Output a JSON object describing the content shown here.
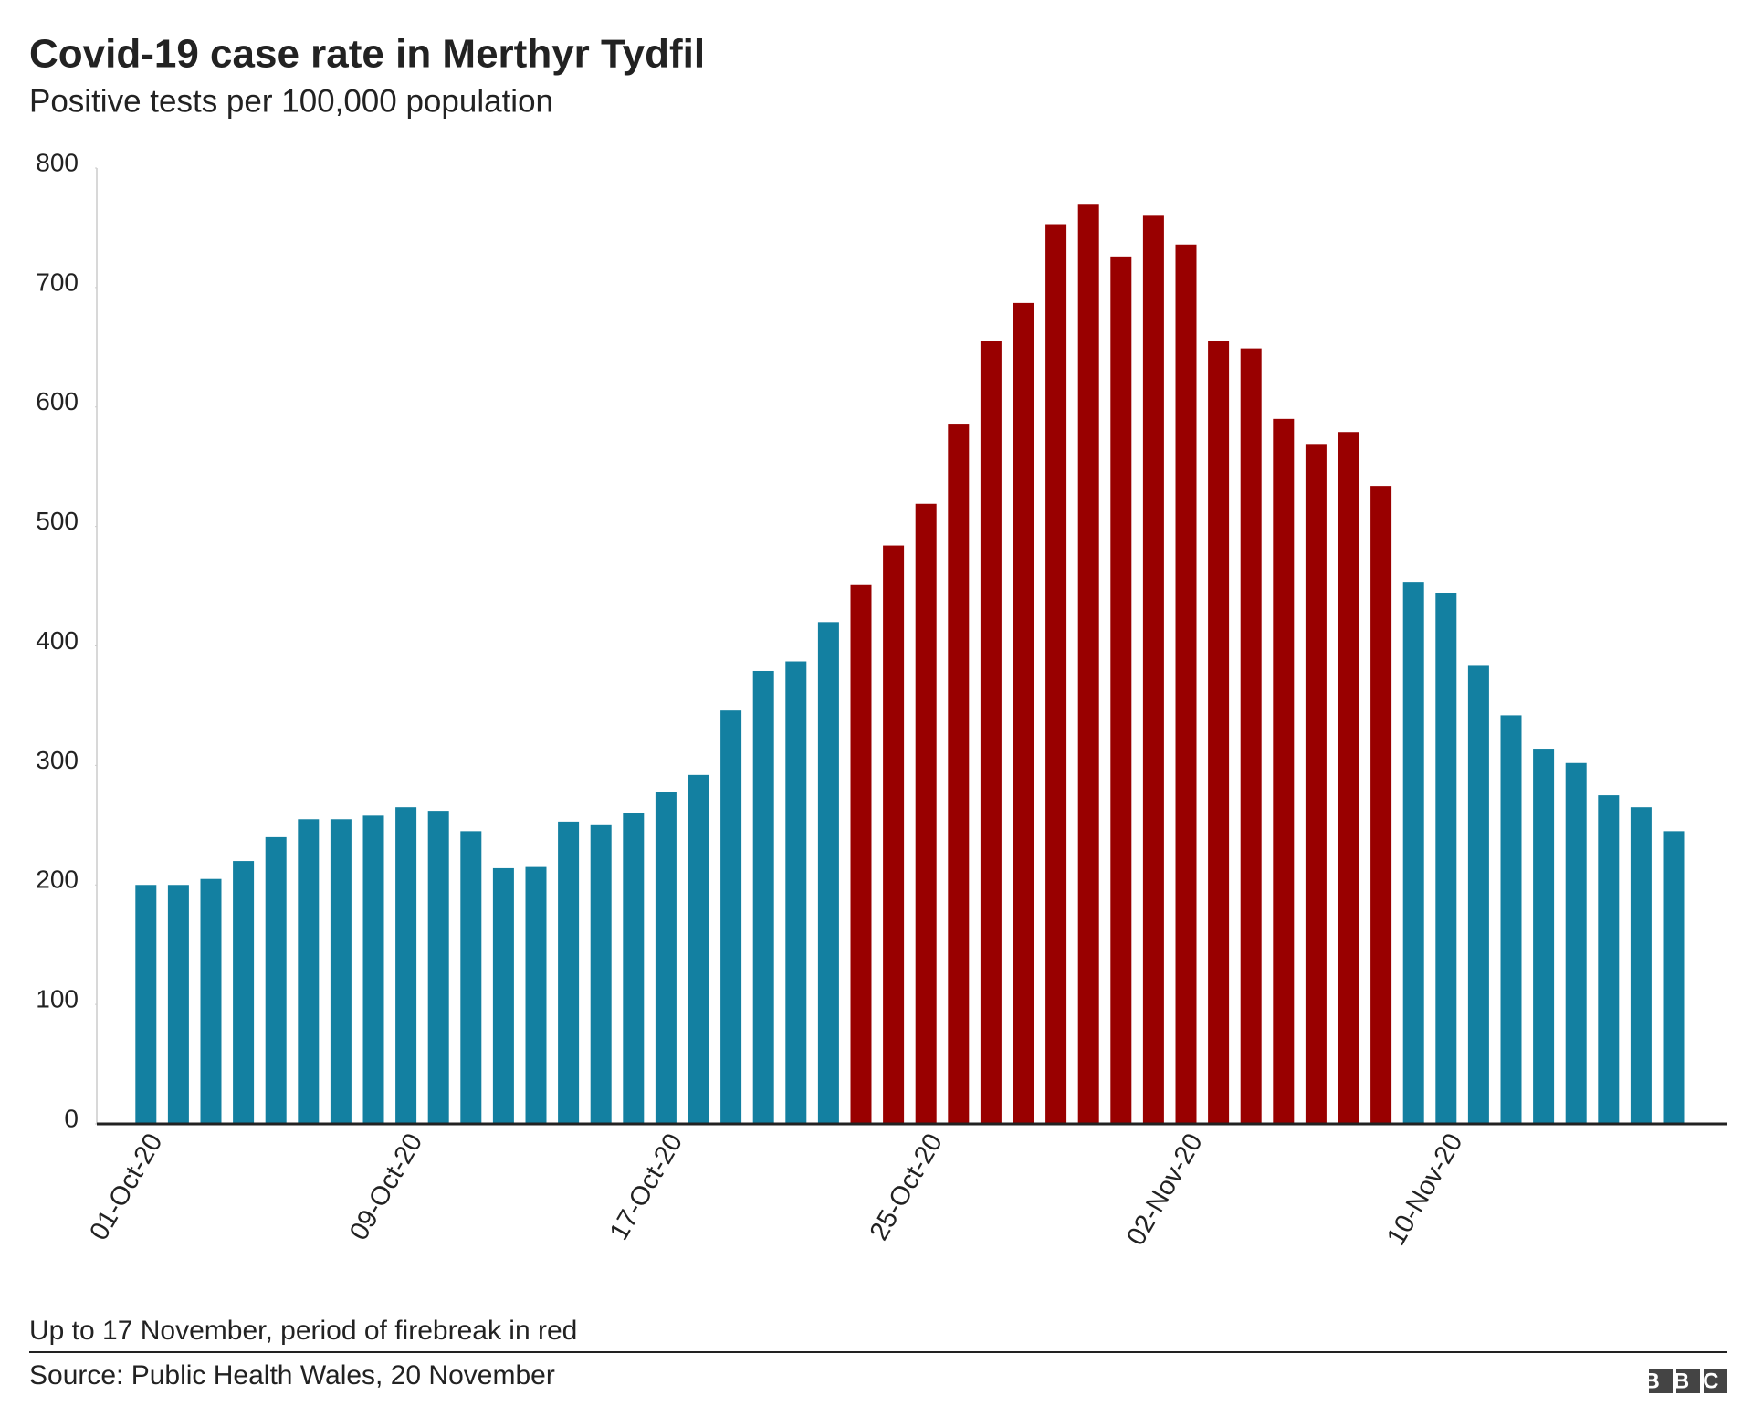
{
  "chart_data": {
    "type": "bar",
    "title": "Covid-19 case rate in Merthyr Tydfil",
    "subtitle": "Positive tests per 100,000 population",
    "categories": [
      "01-Oct-20",
      null,
      null,
      null,
      null,
      null,
      null,
      null,
      "09-Oct-20",
      null,
      null,
      null,
      null,
      null,
      null,
      null,
      "17-Oct-20",
      null,
      null,
      null,
      null,
      null,
      null,
      null,
      "25-Oct-20",
      null,
      null,
      null,
      null,
      null,
      null,
      null,
      "02-Nov-20",
      null,
      null,
      null,
      null,
      null,
      null,
      null,
      "10-Nov-20",
      null,
      null,
      null,
      null,
      null,
      null,
      null
    ],
    "values": [
      200,
      200,
      205,
      220,
      240,
      255,
      255,
      258,
      265,
      262,
      245,
      214,
      215,
      253,
      250,
      260,
      278,
      292,
      346,
      379,
      387,
      420,
      451,
      484,
      519,
      586,
      655,
      687,
      753,
      770,
      726,
      760,
      736,
      655,
      649,
      590,
      569,
      579,
      534,
      453,
      444,
      384,
      342,
      314,
      302,
      275,
      265,
      245
    ],
    "colors": [
      "#1380a1",
      "#1380a1",
      "#1380a1",
      "#1380a1",
      "#1380a1",
      "#1380a1",
      "#1380a1",
      "#1380a1",
      "#1380a1",
      "#1380a1",
      "#1380a1",
      "#1380a1",
      "#1380a1",
      "#1380a1",
      "#1380a1",
      "#1380a1",
      "#1380a1",
      "#1380a1",
      "#1380a1",
      "#1380a1",
      "#1380a1",
      "#1380a1",
      "#990000",
      "#990000",
      "#990000",
      "#990000",
      "#990000",
      "#990000",
      "#990000",
      "#990000",
      "#990000",
      "#990000",
      "#990000",
      "#990000",
      "#990000",
      "#990000",
      "#990000",
      "#990000",
      "#990000",
      "#1380a1",
      "#1380a1",
      "#1380a1",
      "#1380a1",
      "#1380a1",
      "#1380a1",
      "#1380a1",
      "#1380a1",
      "#1380a1"
    ],
    "ylim": [
      0,
      800
    ],
    "yticks": [
      0,
      100,
      200,
      300,
      400,
      500,
      600,
      700,
      800
    ],
    "grid": false,
    "note": "Up to 17 November, period of firebreak in red",
    "source": "Source: Public Health Wales, 20 November",
    "logo": "BBC"
  }
}
